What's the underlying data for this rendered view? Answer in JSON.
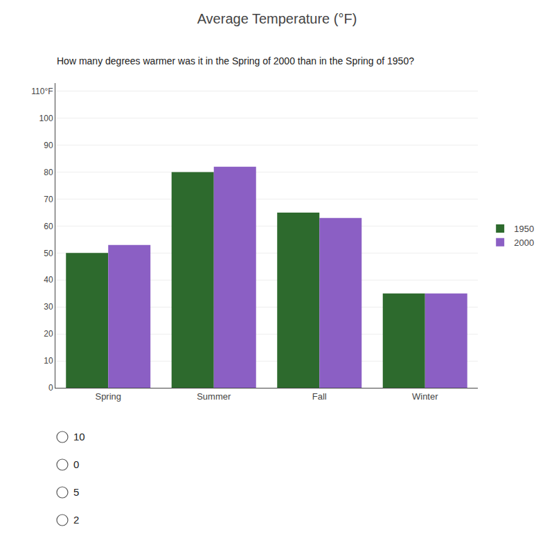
{
  "chart_data": {
    "type": "bar",
    "title": "Average Temperature (°F)",
    "categories": [
      "Spring",
      "Summer",
      "Fall",
      "Winter"
    ],
    "series": [
      {
        "name": "1950",
        "color": "#2d6a2d",
        "values": [
          50,
          80,
          65,
          35
        ]
      },
      {
        "name": "2000",
        "color": "#8b5fc4",
        "values": [
          53,
          82,
          63,
          35
        ]
      }
    ],
    "ylim": [
      0,
      113
    ],
    "yticks": [
      0,
      10,
      20,
      30,
      40,
      50,
      60,
      70,
      80,
      90,
      100,
      {
        "value": 110,
        "label": "110°F"
      }
    ],
    "grid": true,
    "legend": "right",
    "annotations": [
      "How many degrees warmer was it in the Spring of 2000 than in the Spring of 1950?",
      "10",
      "0",
      "5",
      "2"
    ]
  }
}
